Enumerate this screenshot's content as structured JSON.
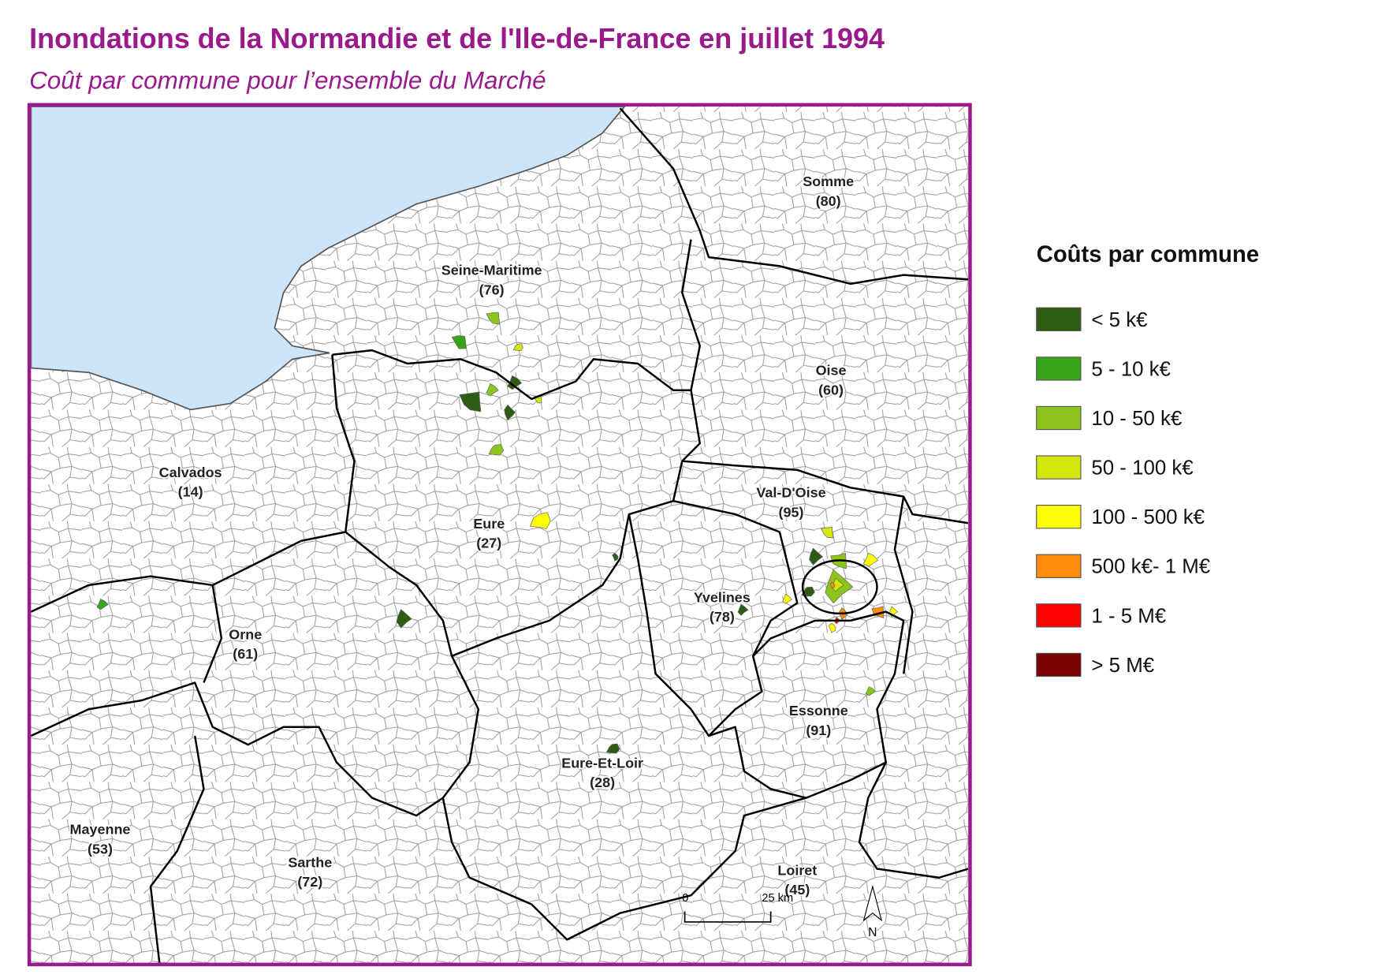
{
  "header": {
    "title": "Inondations de la Normandie et de l'Ile-de-France en juillet 1994",
    "subtitle": "Coût par commune pour l’ensemble du Marché"
  },
  "legend": {
    "title": "Coûts par commune",
    "items": [
      {
        "label": "< 5 k€",
        "color": "#2e5c12"
      },
      {
        "label": "5 - 10 k€",
        "color": "#38a318"
      },
      {
        "label": "10 - 50 k€",
        "color": "#8cc41c"
      },
      {
        "label": "50 - 100 k€",
        "color": "#d4e60a"
      },
      {
        "label": "100 - 500 k€",
        "color": "#ffff00"
      },
      {
        "label": "500 k€- 1 M€",
        "color": "#ff8c0a"
      },
      {
        "label": "1 - 5 M€",
        "color": "#ff0000"
      },
      {
        "label": "> 5 M€",
        "color": "#7a0000"
      }
    ]
  },
  "map": {
    "departments": [
      {
        "name": "Somme",
        "code": "(80)"
      },
      {
        "name": "Seine-Maritime",
        "code": "(76)"
      },
      {
        "name": "Oise",
        "code": "(60)"
      },
      {
        "name": "Calvados",
        "code": "(14)"
      },
      {
        "name": "Val-D'Oise",
        "code": "(95)"
      },
      {
        "name": "Eure",
        "code": "(27)"
      },
      {
        "name": "Yvelines",
        "code": "(78)"
      },
      {
        "name": "Orne",
        "code": "(61)"
      },
      {
        "name": "Essonne",
        "code": "(91)"
      },
      {
        "name": "Eure-Et-Loir",
        "code": "(28)"
      },
      {
        "name": "Mayenne",
        "code": "(53)"
      },
      {
        "name": "Sarthe",
        "code": "(72)"
      },
      {
        "name": "Loiret",
        "code": "(45)"
      }
    ],
    "scale_bar": {
      "start": "0",
      "end": "25 km"
    },
    "north": "N"
  }
}
